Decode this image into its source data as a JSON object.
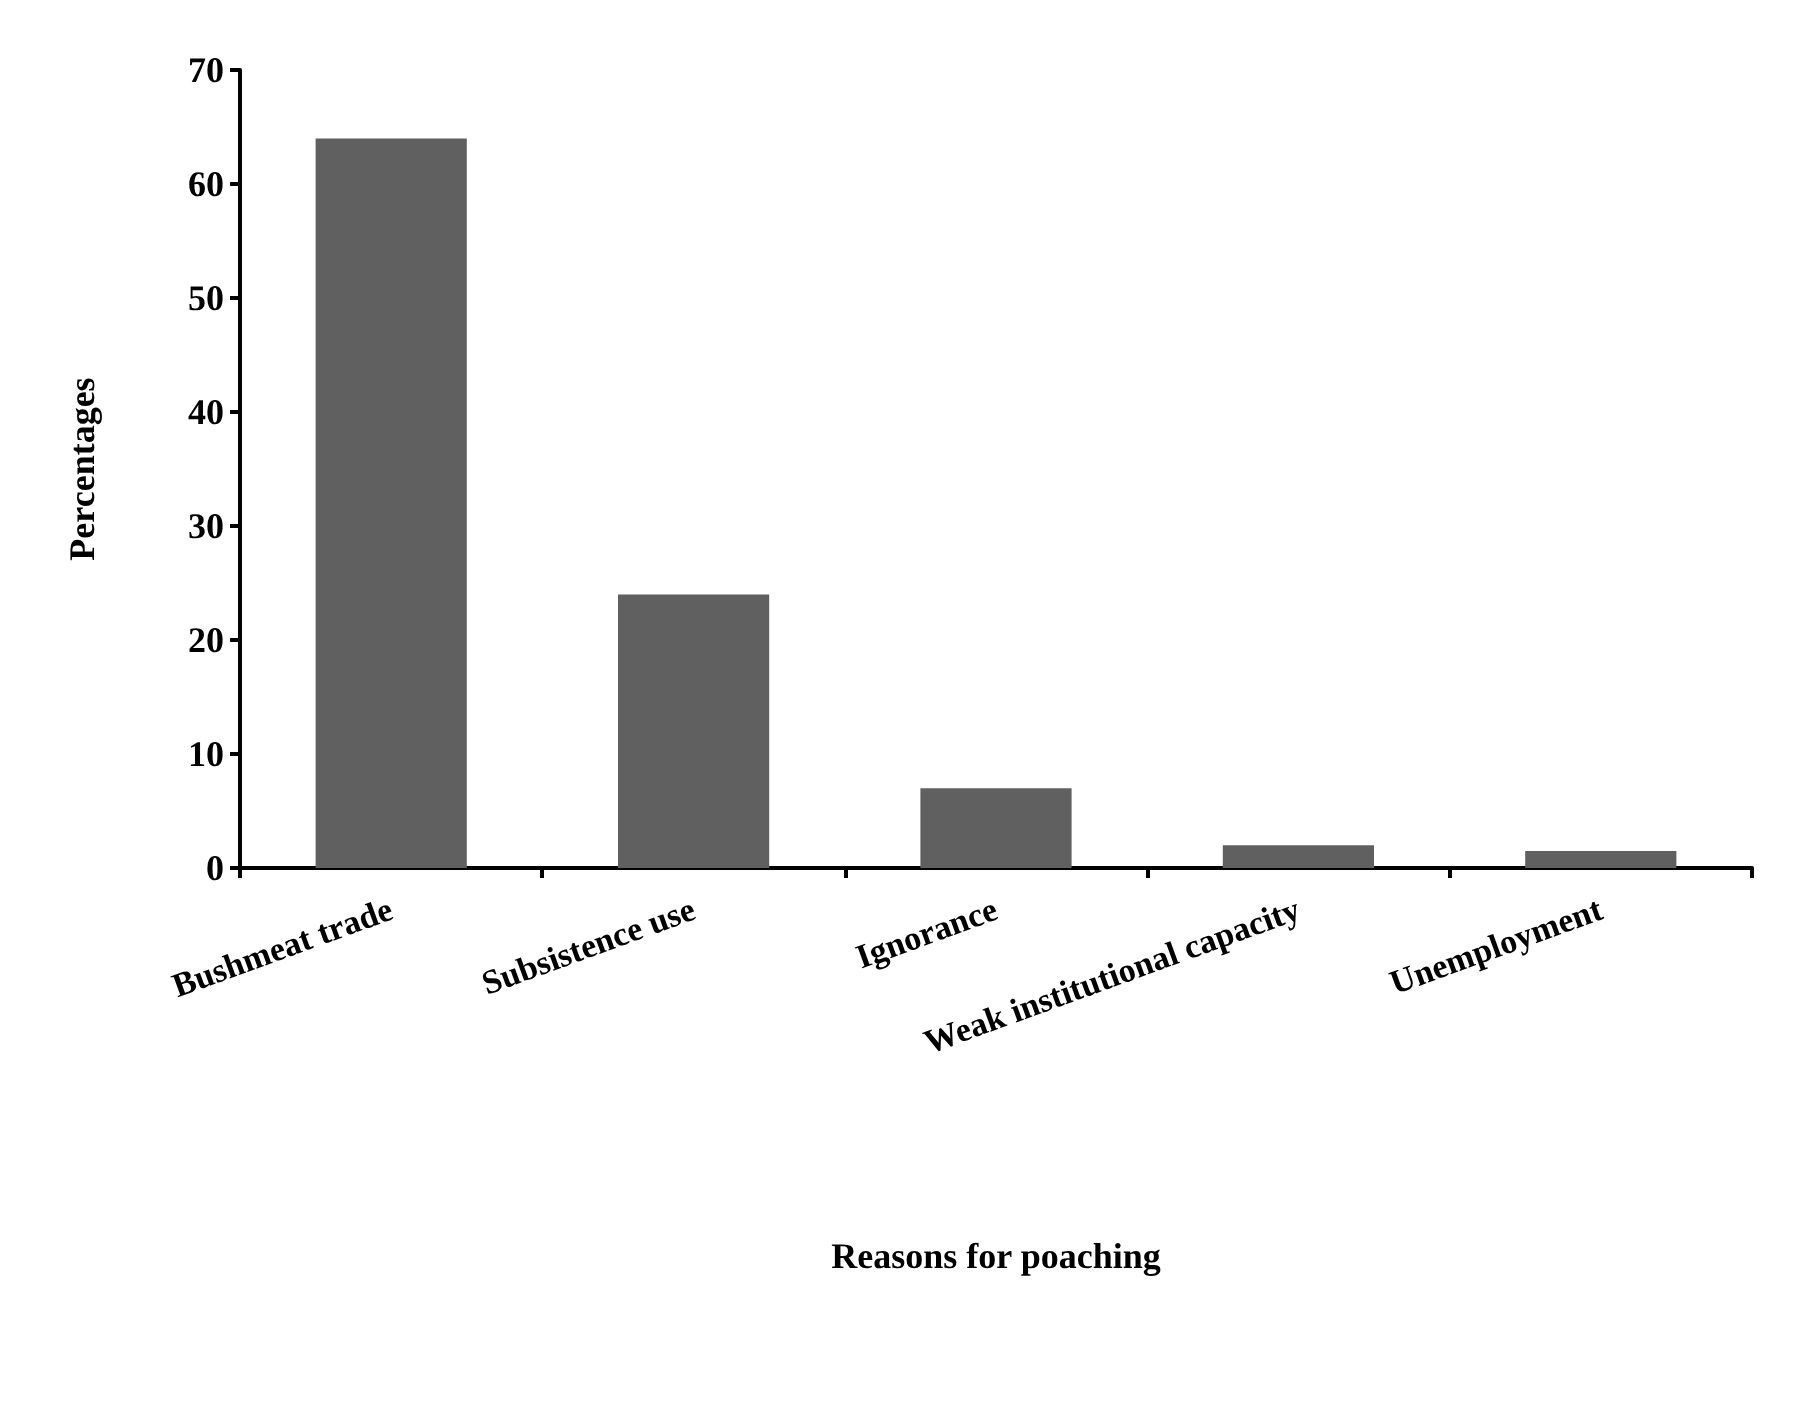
{
  "chart_data": {
    "type": "bar",
    "xlabel": "Reasons for poaching",
    "ylabel": "Percentages",
    "categories": [
      "Bushmeat trade",
      "Subsistence use",
      "Ignorance",
      "Weak institutional capacity",
      "Unemployment"
    ],
    "values": [
      64,
      24,
      7,
      2,
      1.5
    ],
    "color": "#606060",
    "ylim": [
      0,
      70
    ],
    "yticks": [
      0,
      10,
      20,
      30,
      40,
      50,
      60,
      70
    ],
    "grid": false
  }
}
